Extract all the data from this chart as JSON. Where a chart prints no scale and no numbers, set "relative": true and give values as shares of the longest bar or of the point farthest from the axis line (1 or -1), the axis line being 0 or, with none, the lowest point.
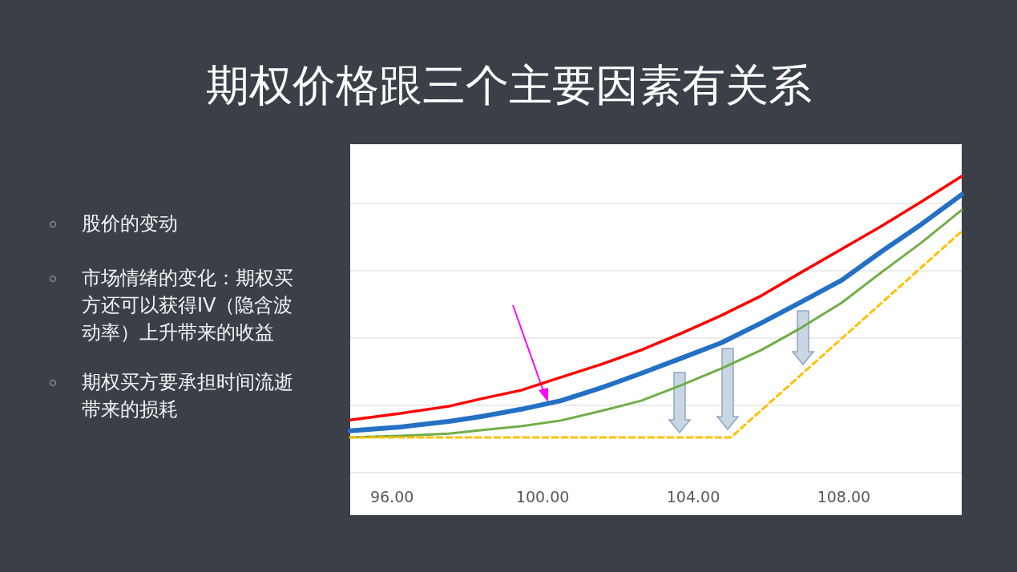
{
  "chart_data": {
    "type": "line",
    "title": "期权价格跟三个主要因素有关系",
    "relative": true,
    "grid": "y",
    "annotations": [
      "股价的变动",
      "市场情绪的变化：期权买方还可以获得IV（隐含波动率）上升带来的收益",
      "期权买方要承担时间流逝带来的损耗"
    ],
    "xlim": [
      94.89,
      111.13
    ],
    "xticks": [
      {
        "value": 96,
        "label": "96.00"
      },
      {
        "value": 100,
        "label": "100.00"
      },
      {
        "value": 104,
        "label": "104.00"
      },
      {
        "value": 108,
        "label": "108.00"
      }
    ],
    "series": [
      {
        "color": "#ff0000",
        "x": [
          94.89,
          96.23,
          97.51,
          98.36,
          99.43,
          100.49,
          101.55,
          102.62,
          103.68,
          104.74,
          105.81,
          106.87,
          107.94,
          109.0,
          110.06,
          111.13
        ],
        "values": [
          0.178,
          0.2,
          0.224,
          0.249,
          0.278,
          0.322,
          0.365,
          0.414,
          0.47,
          0.53,
          0.597,
          0.676,
          0.754,
          0.832,
          0.914,
          1
        ]
      },
      {
        "color": "#2370c4",
        "x": [
          94.89,
          96.23,
          97.51,
          98.36,
          99.43,
          100.49,
          101.55,
          102.62,
          103.68,
          104.74,
          105.81,
          106.87,
          107.94,
          109.0,
          110.06,
          111.13
        ],
        "values": [
          0.141,
          0.154,
          0.173,
          0.189,
          0.214,
          0.243,
          0.286,
          0.335,
          0.386,
          0.438,
          0.505,
          0.576,
          0.649,
          0.746,
          0.838,
          0.938
        ]
      },
      {
        "color": "#70ad47",
        "x": [
          94.89,
          96.23,
          97.51,
          98.36,
          99.43,
          100.49,
          101.55,
          102.62,
          103.68,
          104.74,
          105.81,
          106.87,
          107.94,
          109.0,
          110.06,
          111.13
        ],
        "values": [
          0.119,
          0.124,
          0.132,
          0.143,
          0.157,
          0.176,
          0.208,
          0.243,
          0.295,
          0.351,
          0.414,
          0.489,
          0.573,
          0.676,
          0.776,
          0.886
        ]
      },
      {
        "color": "#ffc000",
        "line_style": "dashed",
        "x": [
          94.89,
          105.0,
          111.13
        ],
        "values": [
          0.119,
          0.119,
          0.814
        ]
      }
    ]
  }
}
